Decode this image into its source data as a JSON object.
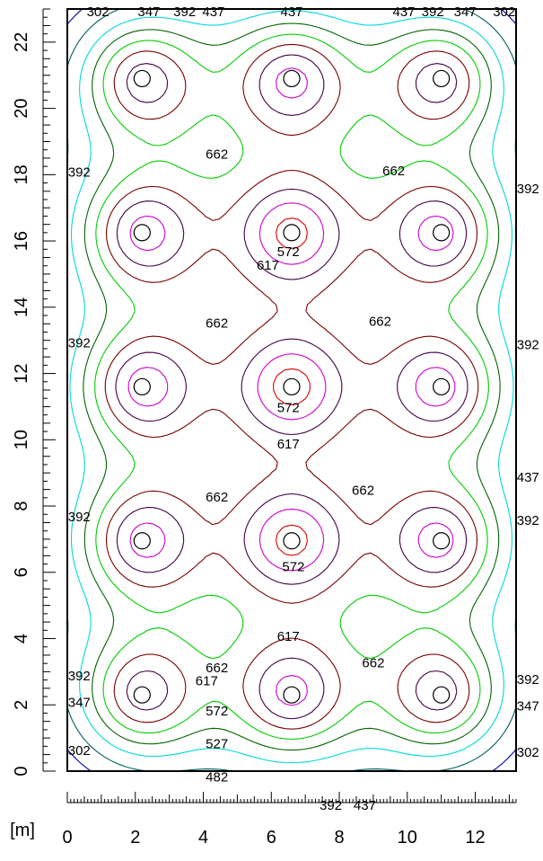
{
  "chart_data": {
    "type": "contour",
    "unit_label": "[m]",
    "xlim": [
      0,
      13.2
    ],
    "ylim": [
      0,
      23
    ],
    "x_ticks": [
      0,
      2,
      4,
      6,
      8,
      10,
      12
    ],
    "y_ticks": [
      0,
      2,
      4,
      6,
      8,
      10,
      12,
      14,
      16,
      18,
      20,
      22
    ],
    "luminaires": [
      {
        "x": 2.2,
        "y": 20.9
      },
      {
        "x": 6.6,
        "y": 20.9
      },
      {
        "x": 11.0,
        "y": 20.9
      },
      {
        "x": 2.2,
        "y": 16.25
      },
      {
        "x": 6.6,
        "y": 16.25
      },
      {
        "x": 11.0,
        "y": 16.25
      },
      {
        "x": 2.2,
        "y": 11.6
      },
      {
        "x": 6.6,
        "y": 11.6
      },
      {
        "x": 11.0,
        "y": 11.6
      },
      {
        "x": 2.2,
        "y": 6.95
      },
      {
        "x": 6.6,
        "y": 6.95
      },
      {
        "x": 11.0,
        "y": 6.95
      },
      {
        "x": 2.2,
        "y": 2.3
      },
      {
        "x": 6.6,
        "y": 2.3
      },
      {
        "x": 11.0,
        "y": 2.3
      }
    ],
    "contour_levels": [
      {
        "value": "302",
        "color": "#0000aa"
      },
      {
        "value": "347",
        "color": "#006060"
      },
      {
        "value": "392",
        "color": "#00d8d8"
      },
      {
        "value": "437",
        "color": "#006400"
      },
      {
        "value": "482",
        "color": "#00cc00"
      },
      {
        "value": "527",
        "color": "#7a0000"
      },
      {
        "value": "572",
        "color": "#440044"
      },
      {
        "value": "617",
        "color": "#cc00cc"
      },
      {
        "value": "662",
        "color": "#dd0000"
      }
    ],
    "contour_labels": [
      {
        "text": "302",
        "x": 0.9,
        "y": 22.95
      },
      {
        "text": "347",
        "x": 2.4,
        "y": 22.95
      },
      {
        "text": "392",
        "x": 3.45,
        "y": 22.95
      },
      {
        "text": "437",
        "x": 4.3,
        "y": 22.95
      },
      {
        "text": "437",
        "x": 6.6,
        "y": 22.95
      },
      {
        "text": "437",
        "x": 9.9,
        "y": 22.95
      },
      {
        "text": "392",
        "x": 10.75,
        "y": 22.95
      },
      {
        "text": "347",
        "x": 11.7,
        "y": 22.95
      },
      {
        "text": "302",
        "x": 12.85,
        "y": 22.95
      },
      {
        "text": "662",
        "x": 4.4,
        "y": 18.65
      },
      {
        "text": "662",
        "x": 9.6,
        "y": 18.15
      },
      {
        "text": "392",
        "x": 0.35,
        "y": 18.1
      },
      {
        "text": "392",
        "x": 13.55,
        "y": 17.6
      },
      {
        "text": "572",
        "x": 6.5,
        "y": 15.7
      },
      {
        "text": "617",
        "x": 5.9,
        "y": 15.3
      },
      {
        "text": "662",
        "x": 4.4,
        "y": 13.55
      },
      {
        "text": "662",
        "x": 9.2,
        "y": 13.6
      },
      {
        "text": "392",
        "x": 0.35,
        "y": 12.95
      },
      {
        "text": "392",
        "x": 13.55,
        "y": 12.9
      },
      {
        "text": "572",
        "x": 6.5,
        "y": 11.0
      },
      {
        "text": "617",
        "x": 6.5,
        "y": 9.9
      },
      {
        "text": "662",
        "x": 4.4,
        "y": 8.3
      },
      {
        "text": "662",
        "x": 8.7,
        "y": 8.5
      },
      {
        "text": "437",
        "x": 13.55,
        "y": 8.9
      },
      {
        "text": "392",
        "x": 0.35,
        "y": 7.7
      },
      {
        "text": "392",
        "x": 13.55,
        "y": 7.6
      },
      {
        "text": "572",
        "x": 6.65,
        "y": 6.2
      },
      {
        "text": "617",
        "x": 6.5,
        "y": 4.1
      },
      {
        "text": "662",
        "x": 4.4,
        "y": 3.15
      },
      {
        "text": "662",
        "x": 9.0,
        "y": 3.3
      },
      {
        "text": "617",
        "x": 4.1,
        "y": 2.75
      },
      {
        "text": "392",
        "x": 0.35,
        "y": 2.9
      },
      {
        "text": "392",
        "x": 13.55,
        "y": 2.8
      },
      {
        "text": "347",
        "x": 0.35,
        "y": 2.1
      },
      {
        "text": "347",
        "x": 13.55,
        "y": 2.0
      },
      {
        "text": "572",
        "x": 4.4,
        "y": 1.85
      },
      {
        "text": "527",
        "x": 4.4,
        "y": 0.85
      },
      {
        "text": "302",
        "x": 0.35,
        "y": 0.65
      },
      {
        "text": "302",
        "x": 13.55,
        "y": 0.6
      },
      {
        "text": "482",
        "x": 4.4,
        "y": -0.15
      },
      {
        "text": "392",
        "x": 7.75,
        "y": -1.0
      },
      {
        "text": "437",
        "x": 8.75,
        "y": -1.0
      }
    ]
  }
}
